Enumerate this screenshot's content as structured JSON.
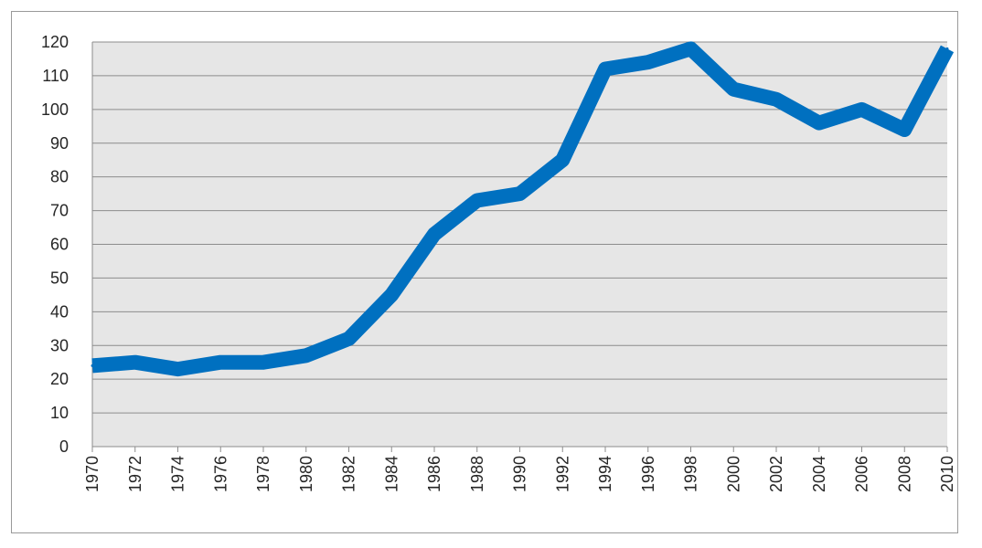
{
  "chart_data": {
    "type": "line",
    "title": "",
    "xlabel": "",
    "ylabel": "",
    "x": [
      1970,
      1972,
      1974,
      1976,
      1978,
      1980,
      1982,
      1984,
      1986,
      1988,
      1990,
      1992,
      1994,
      1996,
      1998,
      2000,
      2002,
      2004,
      2006,
      2008,
      2010
    ],
    "x_tick_labels": [
      "1970",
      "1972",
      "1974",
      "1976",
      "1978",
      "1980",
      "1982",
      "1984",
      "1986",
      "1988",
      "1990",
      "1992",
      "1994",
      "1996",
      "1998",
      "2000",
      "2002",
      "2004",
      "2006",
      "2008",
      "2010"
    ],
    "series": [
      {
        "values": [
          24,
          25,
          23,
          25,
          25,
          27,
          32,
          45,
          63,
          73,
          75,
          85,
          112,
          114,
          118,
          106,
          103,
          96,
          100,
          94,
          118
        ],
        "color": "#0070c0"
      }
    ],
    "y_tick_labels": [
      "0",
      "10",
      "20",
      "30",
      "40",
      "50",
      "60",
      "70",
      "80",
      "90",
      "100",
      "110",
      "120"
    ],
    "ylim": [
      0,
      120
    ],
    "xlim": [
      1970,
      2010
    ],
    "grid": true,
    "gridline_axis": "y",
    "plot_background": "#e6e6e6",
    "gridline_color": "#8c8c8c",
    "legend": "none"
  }
}
